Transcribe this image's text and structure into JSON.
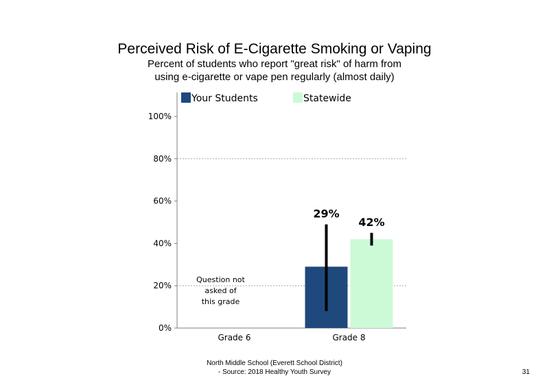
{
  "chart_data": {
    "type": "bar",
    "title": "Perceived Risk of E-Cigarette Smoking or Vaping",
    "subtitle_line1": "Percent of students who report \"great risk\" of harm from",
    "subtitle_line2": "using e-cigarette or vape pen regularly (almost daily)",
    "categories": [
      "Grade 6",
      "Grade 8"
    ],
    "series": [
      {
        "name": "Your Students",
        "color": "#1F497D",
        "values": [
          null,
          29
        ],
        "error_low": [
          null,
          8
        ],
        "error_high": [
          null,
          49
        ],
        "labels": [
          "",
          "29%"
        ]
      },
      {
        "name": "Statewide",
        "color": "#CCFAD6",
        "values": [
          null,
          42
        ],
        "error_low": [
          null,
          39
        ],
        "error_high": [
          null,
          45
        ],
        "labels": [
          "",
          "42%"
        ]
      }
    ],
    "ylim": [
      0,
      110
    ],
    "yticks": [
      0,
      20,
      40,
      60,
      80,
      100
    ],
    "ytick_labels": [
      "0%",
      "20%",
      "40%",
      "60%",
      "80%",
      "100%"
    ],
    "gridlines": [
      20,
      80
    ],
    "legend_position": "top",
    "note_line1": "Question not",
    "note_line2": "asked of",
    "note_line3": "this grade"
  },
  "footer": {
    "line1": "North Middle School (Everett School District)",
    "line2": "- Source: 2018 Healthy Youth Survey"
  },
  "page_number": "31"
}
